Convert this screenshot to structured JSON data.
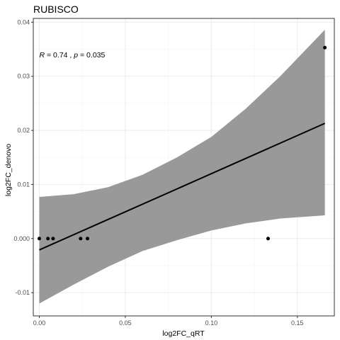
{
  "chart_data": {
    "type": "scatter",
    "title": "RUBISCO",
    "xlabel": "log2FC_qRT",
    "ylabel": "log2FC_denovo",
    "xlim": [
      -0.0035,
      0.1715
    ],
    "ylim": [
      -0.0143,
      0.0407
    ],
    "x_ticks": [
      0.0,
      0.05,
      0.1,
      0.15
    ],
    "x_tick_labels": [
      "0.00",
      "0.05",
      "0.10",
      "0.15"
    ],
    "y_ticks": [
      -0.01,
      0.0,
      0.01,
      0.02,
      0.03,
      0.04
    ],
    "y_tick_labels": [
      "-0.01",
      "0.000",
      "0.01",
      "0.02",
      "0.03",
      "0.04"
    ],
    "points": [
      {
        "x": 0.0,
        "y": 0.0
      },
      {
        "x": 0.005,
        "y": 0.0
      },
      {
        "x": 0.008,
        "y": 0.0
      },
      {
        "x": 0.024,
        "y": 0.0
      },
      {
        "x": 0.028,
        "y": 0.0
      },
      {
        "x": 0.133,
        "y": 0.0
      },
      {
        "x": 0.166,
        "y": 0.0353
      }
    ],
    "regression": {
      "x": [
        0.0,
        0.166
      ],
      "y": [
        -0.0021,
        0.0213
      ]
    },
    "confidence_band": {
      "x": [
        0.0,
        0.02,
        0.04,
        0.06,
        0.08,
        0.1,
        0.12,
        0.14,
        0.166
      ],
      "upper": [
        0.0077,
        0.0082,
        0.0095,
        0.0118,
        0.015,
        0.0188,
        0.024,
        0.03,
        0.0386
      ],
      "lower": [
        -0.012,
        -0.0085,
        -0.0052,
        -0.0023,
        -0.0003,
        0.0015,
        0.0028,
        0.0037,
        0.0043
      ]
    },
    "annotation": {
      "r_symbol": "R",
      "r_text": " = 0.74 , ",
      "p_symbol": "p",
      "p_text": " = 0.035",
      "x": 0.0,
      "y": 0.034
    },
    "grid": true,
    "colors": {
      "band": "#999999",
      "line": "#000000",
      "point": "#000000",
      "panel_border": "#333333",
      "grid_major": "#ebebeb",
      "grid_minor": "#f5f5f5"
    }
  }
}
